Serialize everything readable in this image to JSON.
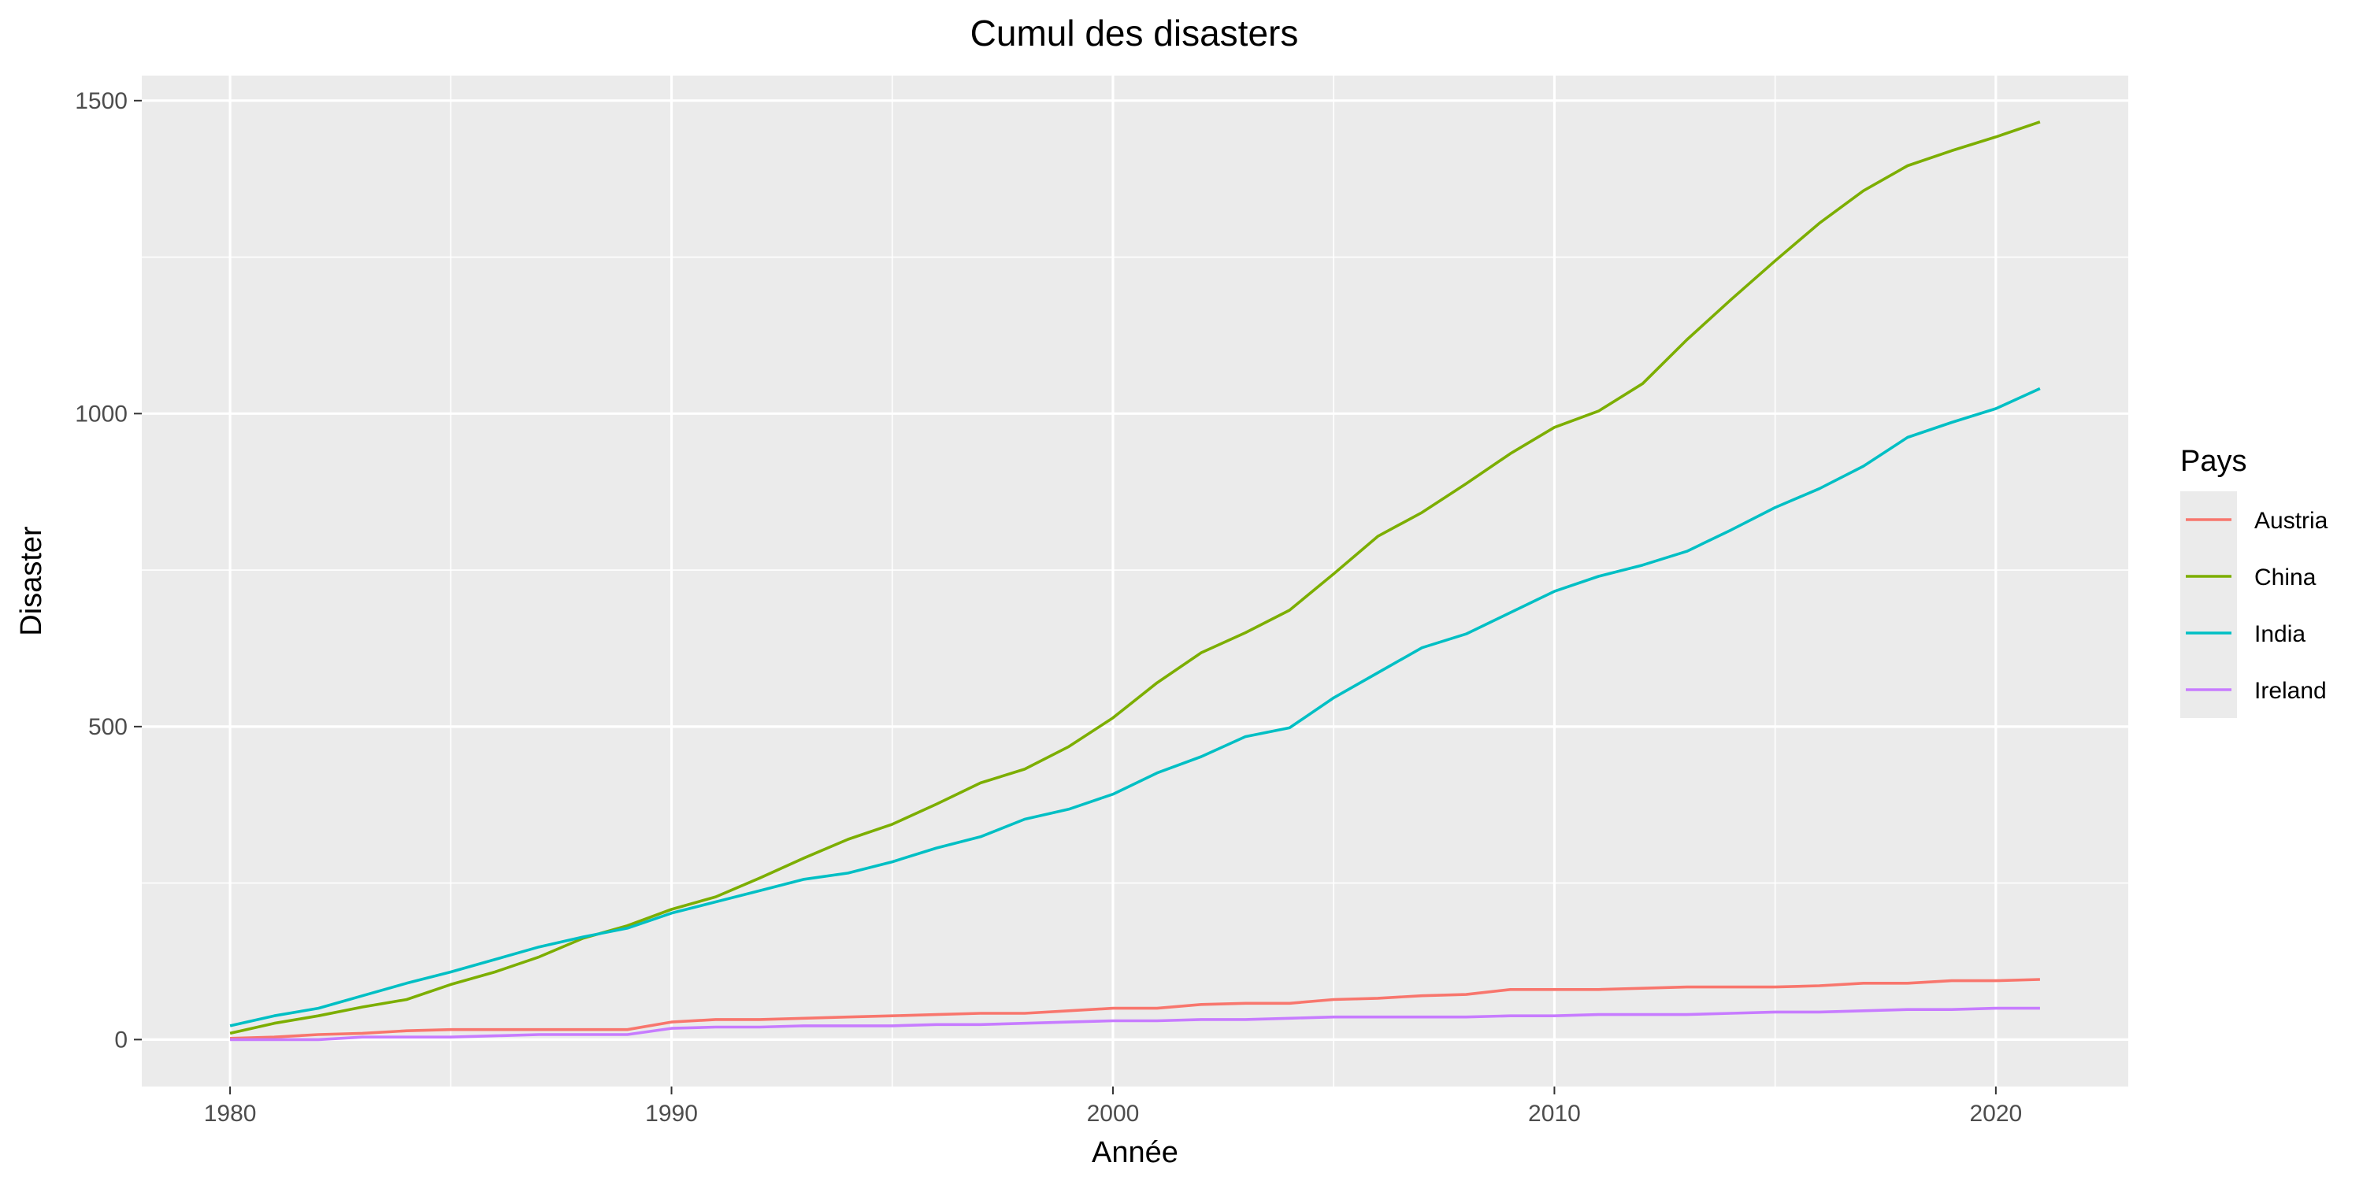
{
  "chart_data": {
    "type": "line",
    "title": "Cumul des disasters",
    "xlabel": "Année",
    "ylabel": "Disaster",
    "xlim": [
      1978,
      2023
    ],
    "ylim": [
      -75,
      1540
    ],
    "x_ticks": [
      1980,
      1990,
      2000,
      2010,
      2020
    ],
    "y_ticks": [
      0,
      500,
      1000,
      1500
    ],
    "grid": true,
    "legend": {
      "title": "Pays",
      "position": "right"
    },
    "x": [
      1980,
      1981,
      1982,
      1983,
      1984,
      1985,
      1986,
      1987,
      1988,
      1989,
      1990,
      1991,
      1992,
      1993,
      1994,
      1995,
      1996,
      1997,
      1998,
      1999,
      2000,
      2001,
      2002,
      2003,
      2004,
      2005,
      2006,
      2007,
      2008,
      2009,
      2010,
      2011,
      2012,
      2013,
      2014,
      2015,
      2016,
      2017,
      2018,
      2019,
      2020,
      2021
    ],
    "series": [
      {
        "name": "Austria",
        "color": "#F8766D",
        "values": [
          2,
          4,
          8,
          10,
          14,
          16,
          16,
          16,
          16,
          16,
          28,
          32,
          32,
          34,
          36,
          38,
          40,
          42,
          42,
          46,
          50,
          50,
          56,
          58,
          58,
          64,
          66,
          70,
          72,
          80,
          80,
          80,
          82,
          84,
          84,
          84,
          86,
          90,
          90,
          94,
          94,
          96
        ]
      },
      {
        "name": "China",
        "color": "#7CAE00",
        "values": [
          10,
          26,
          38,
          52,
          64,
          88,
          108,
          132,
          162,
          182,
          208,
          228,
          258,
          290,
          320,
          344,
          376,
          410,
          432,
          468,
          514,
          570,
          618,
          650,
          686,
          744,
          804,
          842,
          888,
          936,
          978,
          1004,
          1048,
          1118,
          1182,
          1244,
          1304,
          1356,
          1396,
          1420,
          1442,
          1466
        ]
      },
      {
        "name": "India",
        "color": "#00BFC4",
        "values": [
          22,
          38,
          50,
          70,
          90,
          108,
          128,
          148,
          164,
          178,
          202,
          220,
          238,
          256,
          266,
          284,
          306,
          324,
          352,
          368,
          392,
          426,
          452,
          484,
          498,
          546,
          586,
          626,
          648,
          682,
          716,
          740,
          758,
          780,
          814,
          850,
          880,
          916,
          962,
          986,
          1008,
          1040
        ]
      },
      {
        "name": "Ireland",
        "color": "#C77CFF",
        "values": [
          0,
          0,
          0,
          4,
          4,
          4,
          6,
          8,
          8,
          8,
          18,
          20,
          20,
          22,
          22,
          22,
          24,
          24,
          26,
          28,
          30,
          30,
          32,
          32,
          34,
          36,
          36,
          36,
          36,
          38,
          38,
          40,
          40,
          40,
          42,
          44,
          44,
          46,
          48,
          48,
          50,
          50
        ]
      }
    ]
  }
}
